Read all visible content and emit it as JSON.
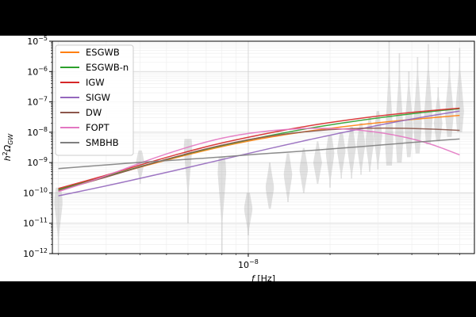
{
  "chart_data": {
    "type": "line",
    "xscale": "log",
    "yscale": "log",
    "xlim": [
      1.9e-09,
      6.8e-08
    ],
    "ylim": [
      1e-12,
      1e-05
    ],
    "xlabel": "f [Hz]",
    "ylabel": "h²Ω_GW",
    "x_ticks": [
      {
        "value": 1e-08,
        "label": "10^-8"
      }
    ],
    "y_ticks": [
      {
        "value": 1e-05,
        "label": "10^-5"
      },
      {
        "value": 1e-06,
        "label": "10^-6"
      },
      {
        "value": 1e-07,
        "label": "10^-7"
      },
      {
        "value": 1e-08,
        "label": "10^-8"
      },
      {
        "value": 1e-09,
        "label": "10^-9"
      },
      {
        "value": 1e-10,
        "label": "10^-10"
      },
      {
        "value": 1e-11,
        "label": "10^-11"
      },
      {
        "value": 1e-12,
        "label": "10^-12"
      }
    ],
    "grid": true,
    "legend_position": "top-left",
    "x": [
      2e-09,
      3e-09,
      4.5e-09,
      7e-09,
      1e-08,
      1.5e-08,
      2.2e-08,
      3.2e-08,
      4.5e-08,
      6e-08
    ],
    "series": [
      {
        "name": "ESGWB",
        "color": "#ff7f0e",
        "values": [
          1.3e-10,
          3.5e-10,
          9.5e-10,
          2.6e-09,
          5.2e-09,
          9.6e-09,
          1.5e-08,
          2.2e-08,
          2.9e-08,
          3.6e-08
        ]
      },
      {
        "name": "ESGWB-n",
        "color": "#2ca02c",
        "values": [
          1.3e-10,
          3.5e-10,
          1e-09,
          2.8e-09,
          5.6e-09,
          1.15e-08,
          2e-08,
          3.2e-08,
          4.6e-08,
          6e-08
        ]
      },
      {
        "name": "IGW",
        "color": "#d62728",
        "values": [
          1.4e-10,
          3.8e-10,
          1.15e-09,
          3.4e-09,
          6.9e-09,
          1.4e-08,
          2.4e-08,
          3.7e-08,
          5e-08,
          6.2e-08
        ]
      },
      {
        "name": "SIGW",
        "color": "#9467bd",
        "values": [
          8e-11,
          1.7e-10,
          3.8e-10,
          9.5e-10,
          2e-09,
          4.6e-09,
          9.6e-09,
          1.9e-08,
          3.3e-08,
          5e-08
        ]
      },
      {
        "name": "DW",
        "color": "#8c564b",
        "values": [
          1.2e-10,
          3.3e-10,
          1e-09,
          2.9e-09,
          5.8e-09,
          1e-08,
          1.3e-08,
          1.4e-08,
          1.3e-08,
          1.15e-08
        ]
      },
      {
        "name": "FOPT",
        "color": "#e377c2",
        "values": [
          1.1e-10,
          3.6e-10,
          1.45e-09,
          5e-09,
          9.5e-09,
          1.35e-08,
          1.35e-08,
          9.5e-09,
          4.8e-09,
          1.8e-09
        ]
      },
      {
        "name": "SMBHB",
        "color": "#7f7f7f",
        "values": [
          6.3e-10,
          8.4e-10,
          1.1e-09,
          1.4e-09,
          1.8e-09,
          2.3e-09,
          3e-09,
          3.9e-09,
          5e-09,
          6e-09
        ]
      }
    ],
    "violins": [
      {
        "x": 2e-09,
        "center": 5e-11,
        "low": 1e-12,
        "high": 1.5e-10
      },
      {
        "x": 4e-09,
        "center": 1e-09,
        "low": 2e-10,
        "high": 2.5e-09
      },
      {
        "x": 6e-09,
        "center": 3e-09,
        "low": 1e-11,
        "high": 6e-09
      },
      {
        "x": 8e-09,
        "center": 5e-10,
        "low": 1e-12,
        "high": 1.5e-09
      },
      {
        "x": 1e-08,
        "center": 3e-11,
        "low": 4e-12,
        "high": 1e-10
      },
      {
        "x": 1.2e-08,
        "center": 1.5e-10,
        "low": 3e-11,
        "high": 1e-09
      },
      {
        "x": 1.4e-08,
        "center": 4e-10,
        "low": 5e-11,
        "high": 2e-09
      },
      {
        "x": 1.6e-08,
        "center": 6e-10,
        "low": 1e-10,
        "high": 3e-09
      },
      {
        "x": 1.8e-08,
        "center": 1e-09,
        "low": 2e-10,
        "high": 5e-09
      },
      {
        "x": 2e-08,
        "center": 2e-09,
        "low": 1.5e-10,
        "high": 8e-09
      },
      {
        "x": 2.2e-08,
        "center": 2.5e-09,
        "low": 3e-10,
        "high": 1e-08
      },
      {
        "x": 2.4e-08,
        "center": 3e-09,
        "low": 3e-10,
        "high": 1.5e-08
      },
      {
        "x": 2.6e-08,
        "center": 4e-09,
        "low": 4e-10,
        "high": 2e-08
      },
      {
        "x": 2.8e-08,
        "center": 5e-09,
        "low": 5e-10,
        "high": 3e-08
      },
      {
        "x": 3e-08,
        "center": 8e-09,
        "low": 6e-10,
        "high": 5e-08
      },
      {
        "x": 3.3e-08,
        "center": 6e-09,
        "low": 8e-10,
        "high": 1e-05
      },
      {
        "x": 3.6e-08,
        "center": 1e-08,
        "low": 1e-09,
        "high": 4e-06
      },
      {
        "x": 3.9e-08,
        "center": 1.5e-08,
        "low": 1.5e-09,
        "high": 1e-06
      },
      {
        "x": 4.2e-08,
        "center": 2e-08,
        "low": 2e-09,
        "high": 3e-06
      },
      {
        "x": 4.6e-08,
        "center": 3e-08,
        "low": 4e-09,
        "high": 8e-06
      },
      {
        "x": 5e-08,
        "center": 2e-08,
        "low": 5e-09,
        "high": 3e-07
      },
      {
        "x": 5.5e-08,
        "center": 4e-08,
        "low": 7e-09,
        "high": 3e-06
      },
      {
        "x": 6e-08,
        "center": 5e-08,
        "low": 1e-08,
        "high": 6e-06
      }
    ]
  }
}
